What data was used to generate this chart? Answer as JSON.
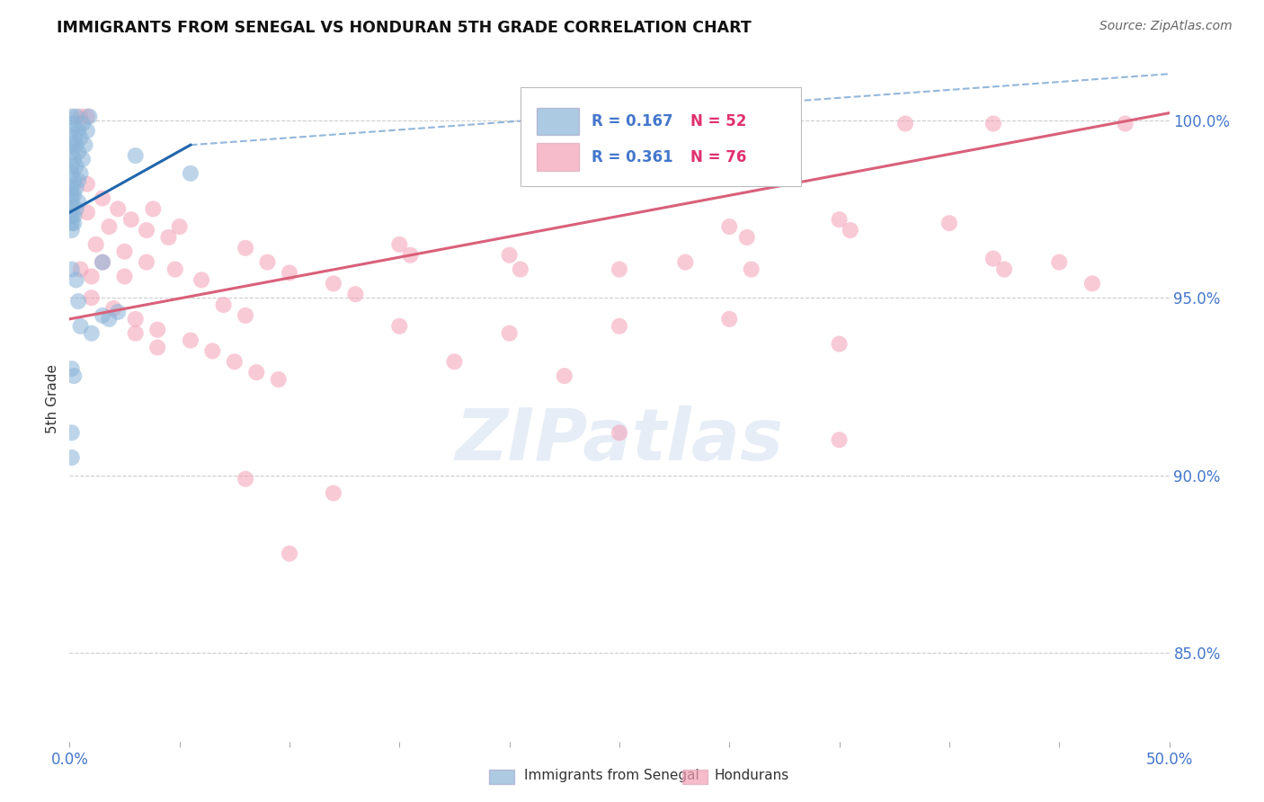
{
  "title": "IMMIGRANTS FROM SENEGAL VS HONDURAN 5TH GRADE CORRELATION CHART",
  "source": "Source: ZipAtlas.com",
  "ylabel": "5th Grade",
  "ytick_values": [
    0.85,
    0.9,
    0.95,
    1.0
  ],
  "xlim": [
    0.0,
    0.5
  ],
  "ylim": [
    0.825,
    1.018
  ],
  "watermark": "ZIPatlas",
  "blue_color": "#8ab4d8",
  "pink_color": "#f4a0b5",
  "blue_line_color": "#2166ac",
  "blue_dash_color": "#6699cc",
  "pink_line_color": "#d9607a",
  "grid_color": "#cccccc",
  "axis_label_color": "#4477cc",
  "background_color": "#ffffff",
  "blue_trendline": [
    [
      0.0,
      0.974
    ],
    [
      0.055,
      0.993
    ]
  ],
  "blue_dashline": [
    [
      0.055,
      0.993
    ],
    [
      0.5,
      1.013
    ]
  ],
  "pink_trendline": [
    [
      0.0,
      0.944
    ],
    [
      0.5,
      1.002
    ]
  ],
  "blue_points": [
    [
      0.001,
      1.001
    ],
    [
      0.003,
      1.001
    ],
    [
      0.009,
      1.001
    ],
    [
      0.002,
      0.999
    ],
    [
      0.006,
      0.999
    ],
    [
      0.001,
      0.997
    ],
    [
      0.004,
      0.997
    ],
    [
      0.008,
      0.997
    ],
    [
      0.002,
      0.995
    ],
    [
      0.005,
      0.995
    ],
    [
      0.001,
      0.993
    ],
    [
      0.003,
      0.993
    ],
    [
      0.007,
      0.993
    ],
    [
      0.001,
      0.991
    ],
    [
      0.004,
      0.991
    ],
    [
      0.002,
      0.989
    ],
    [
      0.006,
      0.989
    ],
    [
      0.001,
      0.987
    ],
    [
      0.003,
      0.987
    ],
    [
      0.001,
      0.985
    ],
    [
      0.005,
      0.985
    ],
    [
      0.002,
      0.983
    ],
    [
      0.004,
      0.983
    ],
    [
      0.001,
      0.981
    ],
    [
      0.003,
      0.981
    ],
    [
      0.001,
      0.979
    ],
    [
      0.002,
      0.979
    ],
    [
      0.001,
      0.977
    ],
    [
      0.004,
      0.977
    ],
    [
      0.001,
      0.975
    ],
    [
      0.003,
      0.975
    ],
    [
      0.001,
      0.973
    ],
    [
      0.002,
      0.973
    ],
    [
      0.001,
      0.971
    ],
    [
      0.002,
      0.971
    ],
    [
      0.001,
      0.969
    ],
    [
      0.03,
      0.99
    ],
    [
      0.055,
      0.985
    ],
    [
      0.018,
      0.944
    ],
    [
      0.015,
      0.945
    ],
    [
      0.01,
      0.94
    ],
    [
      0.005,
      0.942
    ],
    [
      0.022,
      0.946
    ],
    [
      0.001,
      0.958
    ],
    [
      0.003,
      0.955
    ],
    [
      0.001,
      0.93
    ],
    [
      0.002,
      0.928
    ],
    [
      0.001,
      0.912
    ],
    [
      0.001,
      0.905
    ],
    [
      0.015,
      0.96
    ],
    [
      0.004,
      0.949
    ]
  ],
  "pink_points": [
    [
      0.005,
      1.001
    ],
    [
      0.008,
      1.001
    ],
    [
      0.38,
      0.999
    ],
    [
      0.42,
      0.999
    ],
    [
      0.48,
      0.999
    ],
    [
      0.008,
      0.982
    ],
    [
      0.015,
      0.978
    ],
    [
      0.022,
      0.975
    ],
    [
      0.028,
      0.972
    ],
    [
      0.035,
      0.969
    ],
    [
      0.045,
      0.967
    ],
    [
      0.012,
      0.965
    ],
    [
      0.025,
      0.963
    ],
    [
      0.035,
      0.96
    ],
    [
      0.048,
      0.958
    ],
    [
      0.06,
      0.955
    ],
    [
      0.038,
      0.975
    ],
    [
      0.05,
      0.97
    ],
    [
      0.008,
      0.974
    ],
    [
      0.018,
      0.97
    ],
    [
      0.15,
      0.965
    ],
    [
      0.155,
      0.962
    ],
    [
      0.2,
      0.962
    ],
    [
      0.205,
      0.958
    ],
    [
      0.25,
      0.958
    ],
    [
      0.3,
      0.97
    ],
    [
      0.308,
      0.967
    ],
    [
      0.35,
      0.972
    ],
    [
      0.355,
      0.969
    ],
    [
      0.4,
      0.971
    ],
    [
      0.42,
      0.961
    ],
    [
      0.45,
      0.96
    ],
    [
      0.01,
      0.95
    ],
    [
      0.02,
      0.947
    ],
    [
      0.03,
      0.944
    ],
    [
      0.04,
      0.941
    ],
    [
      0.055,
      0.938
    ],
    [
      0.065,
      0.935
    ],
    [
      0.075,
      0.932
    ],
    [
      0.085,
      0.929
    ],
    [
      0.095,
      0.927
    ],
    [
      0.015,
      0.96
    ],
    [
      0.025,
      0.956
    ],
    [
      0.07,
      0.948
    ],
    [
      0.08,
      0.945
    ],
    [
      0.15,
      0.942
    ],
    [
      0.2,
      0.94
    ],
    [
      0.25,
      0.942
    ],
    [
      0.3,
      0.944
    ],
    [
      0.35,
      0.937
    ],
    [
      0.08,
      0.964
    ],
    [
      0.09,
      0.96
    ],
    [
      0.1,
      0.957
    ],
    [
      0.12,
      0.954
    ],
    [
      0.13,
      0.951
    ],
    [
      0.28,
      0.96
    ],
    [
      0.31,
      0.958
    ],
    [
      0.03,
      0.94
    ],
    [
      0.04,
      0.936
    ],
    [
      0.08,
      0.899
    ],
    [
      0.12,
      0.895
    ],
    [
      0.25,
      0.912
    ],
    [
      0.35,
      0.91
    ],
    [
      0.1,
      0.878
    ],
    [
      0.005,
      0.958
    ],
    [
      0.01,
      0.956
    ],
    [
      0.175,
      0.932
    ],
    [
      0.225,
      0.928
    ],
    [
      0.425,
      0.958
    ],
    [
      0.465,
      0.954
    ]
  ]
}
